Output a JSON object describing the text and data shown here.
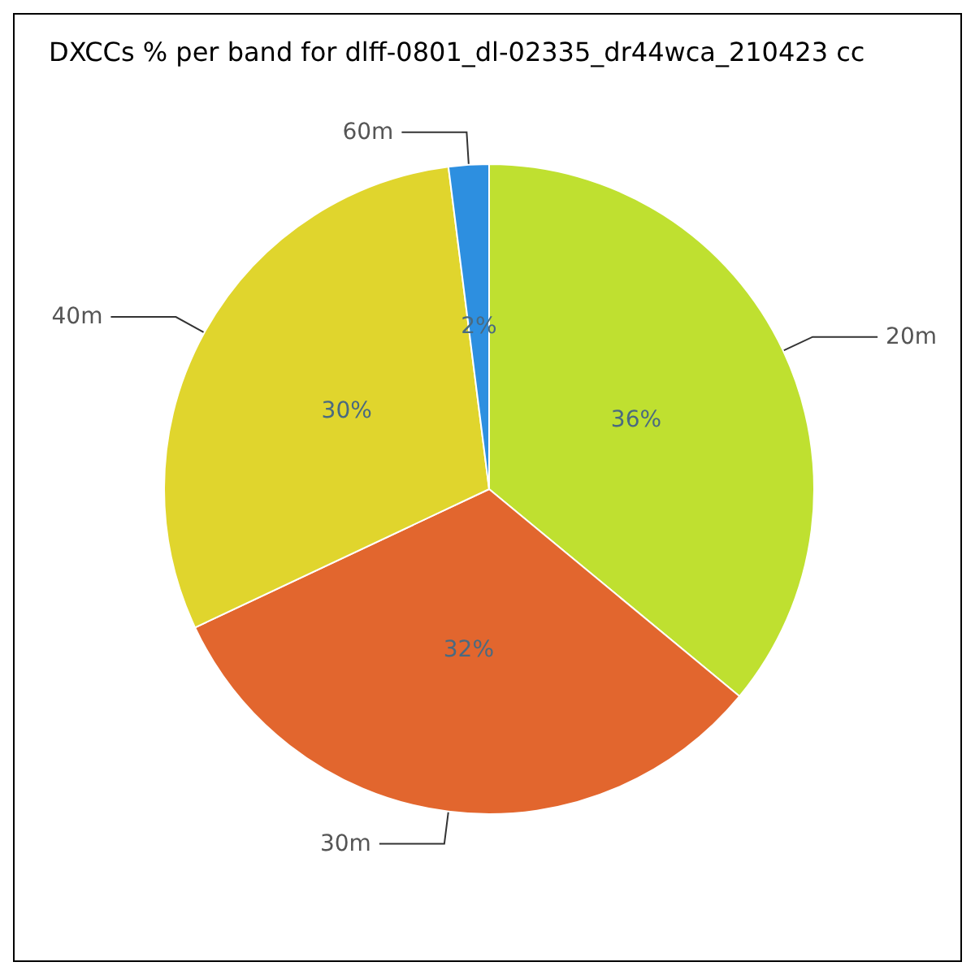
{
  "chart_data": {
    "type": "pie",
    "title": "DXCCs % per band for dlff-0801_dl-02335_dr44wca_210423 cc",
    "categories": [
      "20m",
      "30m",
      "40m",
      "60m"
    ],
    "values": [
      36,
      32,
      30,
      2
    ],
    "colors": [
      "#bfe030",
      "#e2662e",
      "#e0d52d",
      "#2d8fe0"
    ],
    "value_labels": [
      "36%",
      "32%",
      "30%",
      "2%"
    ],
    "legend": false
  }
}
